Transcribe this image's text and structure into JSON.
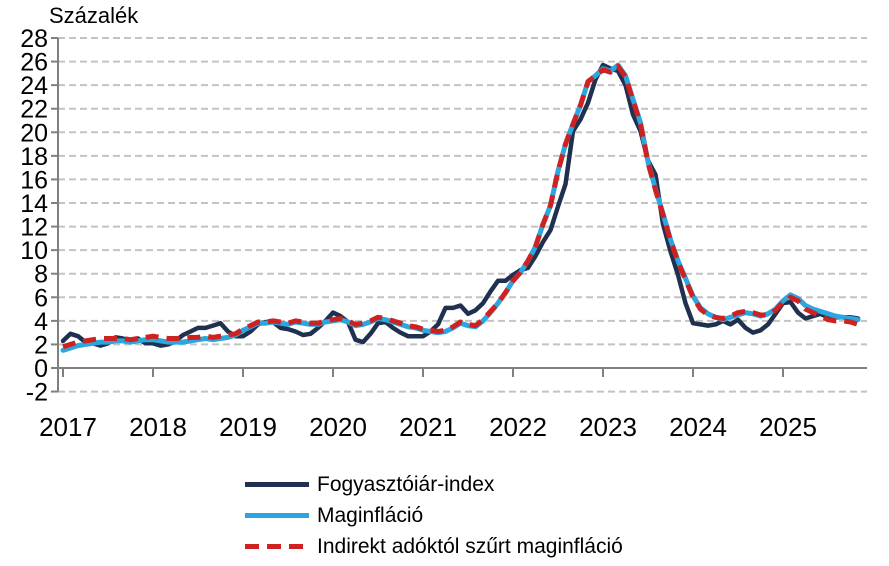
{
  "title": "Százalék",
  "colors": {
    "cpi": "#203150",
    "core": "#2BA6DF",
    "filtered_core": "#CE2222",
    "gridline": "#C3C3C3",
    "axis": "#808080",
    "text": "#000000",
    "background": "#FFFFFF"
  },
  "legend": {
    "items": [
      {
        "label": "Fogyasztóiár-index",
        "series": "cpi",
        "style": "solid"
      },
      {
        "label": "Maginfláció",
        "series": "core",
        "style": "solid"
      },
      {
        "label": "Indirekt adóktól szűrt maginfláció",
        "series": "filtered_core",
        "style": "dashed"
      }
    ]
  },
  "chart_data": {
    "type": "line",
    "title": "Százalék",
    "ylabel": "Százalék",
    "xlabel": "",
    "ylim": [
      -2,
      28
    ],
    "ytick_step": 2,
    "y_tick_labels": [
      "28",
      "26",
      "24",
      "22",
      "20",
      "18",
      "16",
      "14",
      "12",
      "10",
      "8",
      "6",
      "4",
      "2",
      "0",
      "-2"
    ],
    "x_tick_labels": [
      "2017",
      "2018",
      "2019",
      "2020",
      "2021",
      "2022",
      "2023",
      "2024",
      "2025"
    ],
    "x_unit": "month",
    "x_range": [
      "2017-01",
      "2025-11"
    ],
    "grid": "horizontal-dashed",
    "legend_position": "bottom-left",
    "series": [
      {
        "name": "Fogyasztóiár-index",
        "color": "#203150",
        "line_style": "solid",
        "values": [
          2.3,
          2.9,
          2.7,
          2.2,
          2.1,
          1.9,
          2.1,
          2.6,
          2.5,
          2.2,
          2.5,
          2.1,
          2.1,
          1.9,
          2.0,
          2.3,
          2.8,
          3.1,
          3.4,
          3.4,
          3.6,
          3.8,
          3.1,
          2.7,
          2.7,
          3.1,
          3.7,
          3.9,
          3.9,
          3.4,
          3.3,
          3.1,
          2.8,
          2.9,
          3.4,
          4.0,
          4.7,
          4.4,
          3.9,
          2.4,
          2.2,
          2.9,
          3.8,
          3.9,
          3.4,
          3.0,
          2.7,
          2.7,
          2.7,
          3.1,
          3.7,
          5.1,
          5.1,
          5.3,
          4.6,
          4.9,
          5.5,
          6.5,
          7.4,
          7.4,
          7.9,
          8.3,
          8.5,
          9.5,
          10.7,
          11.7,
          13.7,
          15.6,
          20.1,
          21.1,
          22.5,
          24.5,
          25.7,
          25.4,
          25.2,
          24.0,
          21.5,
          20.1,
          17.6,
          16.4,
          12.2,
          9.9,
          7.9,
          5.5,
          3.8,
          3.7,
          3.6,
          3.7,
          4.0,
          3.7,
          4.1,
          3.4,
          3.0,
          3.2,
          3.7,
          4.6,
          5.5,
          5.6,
          4.7,
          4.2,
          4.4,
          4.6,
          4.3,
          4.3,
          4.3,
          4.3,
          4.2
        ]
      },
      {
        "name": "Maginfláció",
        "color": "#2BA6DF",
        "line_style": "solid",
        "values": [
          1.5,
          1.7,
          1.9,
          2.0,
          2.1,
          2.2,
          2.2,
          2.3,
          2.3,
          2.2,
          2.3,
          2.4,
          2.4,
          2.3,
          2.2,
          2.2,
          2.2,
          2.3,
          2.4,
          2.5,
          2.4,
          2.5,
          2.6,
          2.8,
          3.2,
          3.5,
          3.8,
          3.8,
          3.9,
          3.8,
          3.7,
          3.9,
          3.8,
          3.7,
          3.7,
          3.9,
          4.0,
          4.1,
          3.9,
          3.6,
          3.7,
          3.9,
          4.2,
          4.1,
          3.9,
          3.7,
          3.5,
          3.4,
          3.2,
          3.1,
          3.0,
          3.1,
          3.4,
          3.8,
          3.6,
          3.5,
          4.0,
          4.7,
          5.5,
          6.4,
          7.4,
          8.1,
          9.1,
          10.3,
          12.2,
          13.8,
          16.7,
          19.0,
          20.7,
          22.3,
          24.3,
          24.8,
          25.4,
          25.2,
          25.7,
          24.8,
          22.8,
          20.8,
          17.5,
          15.2,
          13.1,
          10.9,
          9.1,
          7.6,
          6.1,
          5.1,
          4.6,
          4.3,
          4.1,
          4.3,
          4.5,
          4.7,
          4.6,
          4.4,
          4.6,
          5.0,
          5.7,
          6.2,
          5.9,
          5.3,
          5.0,
          4.8,
          4.6,
          4.4,
          4.3,
          4.2,
          4.1
        ]
      },
      {
        "name": "Indirekt adóktól szűrt maginfláció",
        "color": "#CE2222",
        "line_style": "dashed",
        "values": [
          1.8,
          2.0,
          2.2,
          2.3,
          2.4,
          2.5,
          2.5,
          2.5,
          2.5,
          2.4,
          2.5,
          2.6,
          2.7,
          2.6,
          2.5,
          2.5,
          2.5,
          2.6,
          2.6,
          2.7,
          2.6,
          2.7,
          2.8,
          2.9,
          3.3,
          3.6,
          3.9,
          3.9,
          4.0,
          3.9,
          3.8,
          4.0,
          3.9,
          3.8,
          3.8,
          4.0,
          4.1,
          4.2,
          4.0,
          3.7,
          3.8,
          4.0,
          4.3,
          4.2,
          4.0,
          3.8,
          3.6,
          3.5,
          3.3,
          3.2,
          3.1,
          3.2,
          3.5,
          3.9,
          3.7,
          3.6,
          4.1,
          4.8,
          5.5,
          6.4,
          7.4,
          8.1,
          9.1,
          10.3,
          12.2,
          13.8,
          16.7,
          19.0,
          20.7,
          22.3,
          24.3,
          24.8,
          25.3,
          25.1,
          25.6,
          24.7,
          22.7,
          20.7,
          17.4,
          15.1,
          13.0,
          10.8,
          9.0,
          7.5,
          6.0,
          5.0,
          4.5,
          4.3,
          4.2,
          4.4,
          4.7,
          4.8,
          4.7,
          4.5,
          4.5,
          4.9,
          5.6,
          6.0,
          5.7,
          5.0,
          4.7,
          4.4,
          4.1,
          4.0,
          4.0,
          3.9,
          3.7
        ]
      }
    ]
  }
}
